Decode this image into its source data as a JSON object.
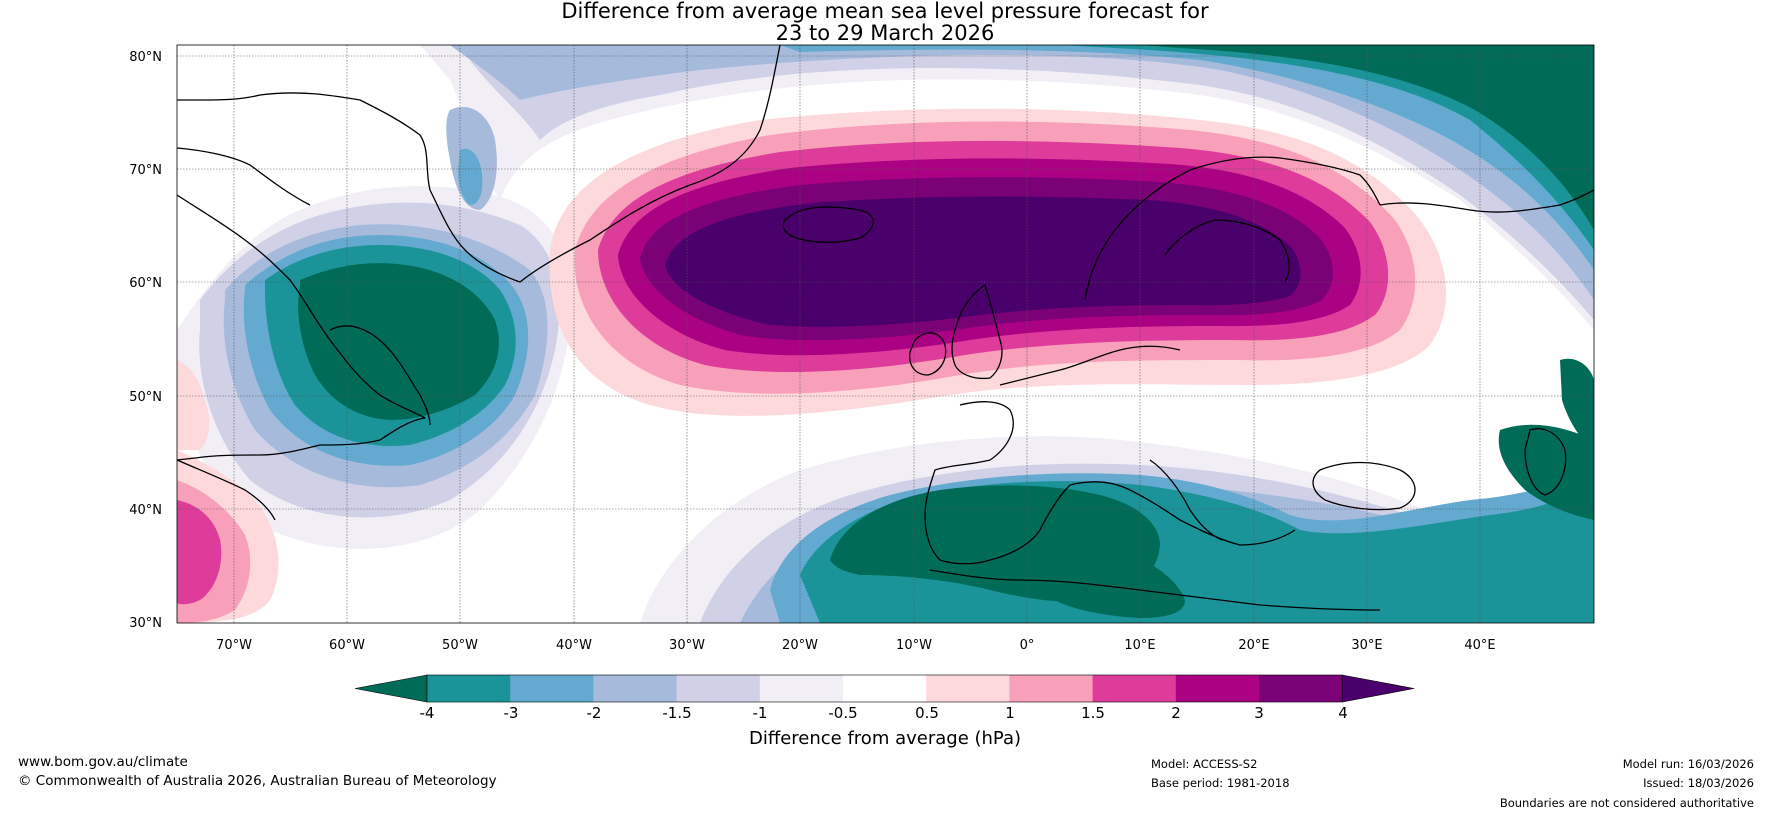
{
  "title": {
    "line1": "Difference from average mean sea level pressure forecast for",
    "line2": "23 to 29 March 2026"
  },
  "axes": {
    "lat_labels": [
      "80°N",
      "70°N",
      "60°N",
      "50°N",
      "40°N",
      "30°N"
    ],
    "lat_values": [
      80,
      70,
      60,
      50,
      40,
      30
    ],
    "lon_labels": [
      "70°W",
      "60°W",
      "50°W",
      "40°W",
      "30°W",
      "20°W",
      "10°W",
      "0°",
      "10°E",
      "20°E",
      "30°E",
      "40°E"
    ],
    "lon_values": [
      -70,
      -60,
      -50,
      -40,
      -30,
      -20,
      -10,
      0,
      10,
      20,
      30,
      40
    ],
    "lon_range": [
      -75,
      50
    ],
    "lat_range": [
      30,
      81
    ]
  },
  "colorbar": {
    "label": "Difference from average (hPa)",
    "ticks": [
      "-4",
      "-3",
      "-2",
      "-1.5",
      "-1",
      "-0.5",
      "0.5",
      "1",
      "1.5",
      "2",
      "3",
      "4"
    ],
    "colors": [
      "#006c58",
      "#1b9499",
      "#63a9d0",
      "#a6bbdb",
      "#d0d0e6",
      "#f1eef6",
      "#ffffff",
      "#fdd9dc",
      "#f8a0b9",
      "#dd3c9b",
      "#ab0283",
      "#7b0176",
      "#49006a"
    ]
  },
  "footer": {
    "website": "www.bom.gov.au/climate",
    "copyright": "© Commonwealth of Australia 2026, Australian Bureau of Meteorology",
    "model": "Model: ACCESS-S2",
    "base_period": "Base period: 1981-2018",
    "model_run": "Model run: 16/03/2026",
    "issued": "Issued: 18/03/2026",
    "disclaimer": "Boundaries are not considered authoritative"
  }
}
